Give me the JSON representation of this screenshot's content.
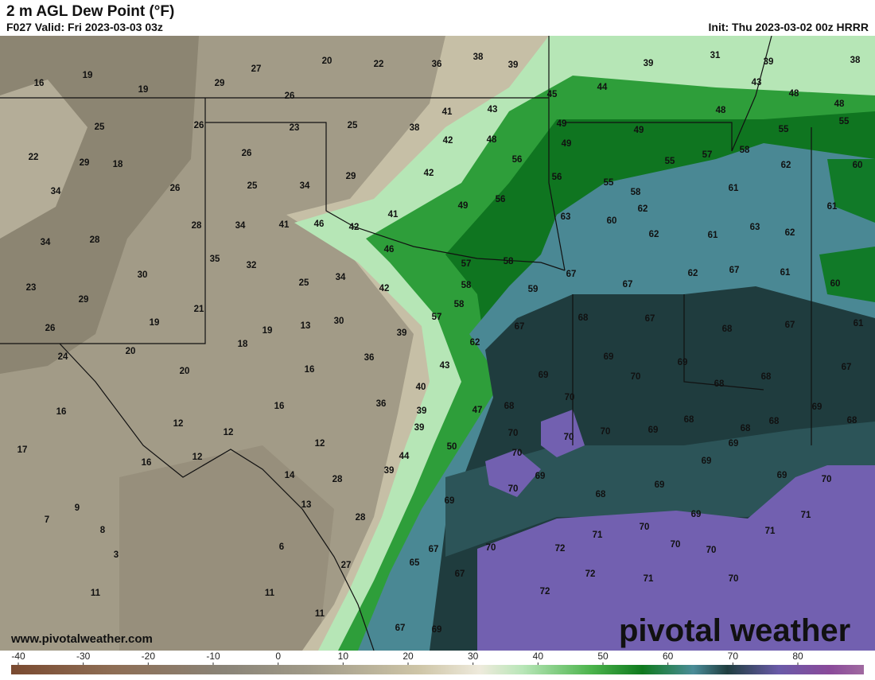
{
  "header": {
    "title": "2 m AGL Dew Point (°F)",
    "valid": "F027 Valid: Fri 2023-03-03 03z",
    "init": "Init: Thu 2023-03-02 00z HRRR"
  },
  "map": {
    "values": [
      16,
      19,
      19,
      29,
      27,
      20,
      22,
      36,
      38,
      39,
      39,
      31,
      39,
      38,
      26,
      26,
      25,
      23,
      25,
      38,
      41,
      43,
      45,
      44,
      43,
      48,
      48,
      48,
      22,
      29,
      18,
      26,
      26,
      25,
      34,
      29,
      42,
      48,
      49,
      49,
      49,
      55,
      55,
      56,
      42,
      57,
      55,
      58,
      56,
      55,
      58,
      62,
      60,
      61,
      34,
      34,
      28,
      28,
      34,
      41,
      46,
      42,
      41,
      49,
      56,
      63,
      60,
      62,
      62,
      61,
      63,
      62,
      61,
      35,
      32,
      46,
      57,
      58,
      67,
      25,
      34,
      42,
      58,
      59,
      67,
      62,
      67,
      61,
      60,
      23,
      30,
      29,
      21,
      19,
      26,
      19,
      13,
      30,
      58,
      57,
      39,
      67,
      68,
      67,
      68,
      67,
      61,
      20,
      24,
      18,
      62,
      36,
      43,
      69,
      69,
      20,
      16,
      69,
      70,
      68,
      68,
      67,
      40,
      70,
      36,
      16,
      16,
      39,
      47,
      68,
      69,
      12,
      39,
      70,
      70,
      70,
      69,
      68,
      68,
      68,
      68,
      69,
      12,
      12,
      50,
      17,
      12,
      44,
      70,
      16,
      39,
      69,
      14,
      28,
      70,
      68,
      69,
      69,
      69,
      70,
      9,
      13,
      69,
      69,
      71,
      7,
      28,
      8,
      70,
      71,
      71,
      6,
      70,
      72,
      70,
      70,
      3,
      67,
      65,
      27,
      67,
      72,
      71,
      70,
      11,
      11,
      72,
      11,
      67,
      69
    ]
  },
  "colorbar": {
    "ticks": [
      -40,
      -30,
      -20,
      -10,
      0,
      10,
      20,
      30,
      40,
      50,
      60,
      70,
      80
    ]
  },
  "footer": {
    "url": "www.pivotalweather.com",
    "brand": "pivotal weather"
  }
}
